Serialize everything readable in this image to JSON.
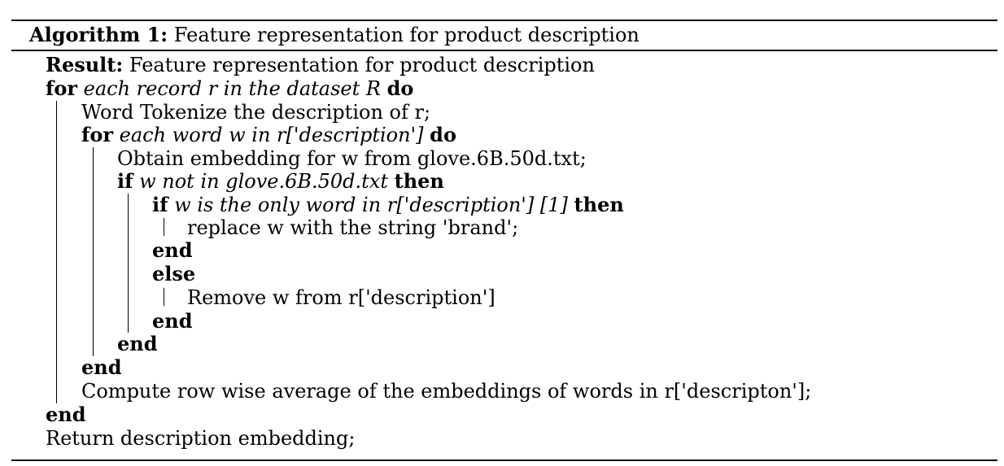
{
  "caption": {
    "label": "Algorithm 1:",
    "title": "Feature representation for product description"
  },
  "result": {
    "keyword": "Result:",
    "text": "Feature representation for product description"
  },
  "outer_for": {
    "keyword": "for",
    "condition": "each record r in the dataset R",
    "do": "do"
  },
  "tokenize": "Word Tokenize the description of r;",
  "inner_for": {
    "keyword": "for",
    "condition": "each word w in r['description']",
    "do": "do"
  },
  "obtain_embedding": "Obtain embedding for w from glove.6B.50d.txt;",
  "if_outer": {
    "keyword": "if",
    "condition": "w not in glove.6B.50d.txt",
    "then": "then"
  },
  "if_inner": {
    "keyword": "if",
    "condition": "w is the only word in r['description'] [1]",
    "then": "then"
  },
  "replace": "replace w with the string 'brand';",
  "end_if_inner": "end",
  "else": "else",
  "remove": "Remove w from r['description']",
  "end_else": "end",
  "end_if_outer": "end",
  "end_inner_for": "end",
  "compute": "Compute row wise average of the embeddings of words in r['descripton'];",
  "end_outer_for": "end",
  "return_stmt": "Return description embedding;"
}
